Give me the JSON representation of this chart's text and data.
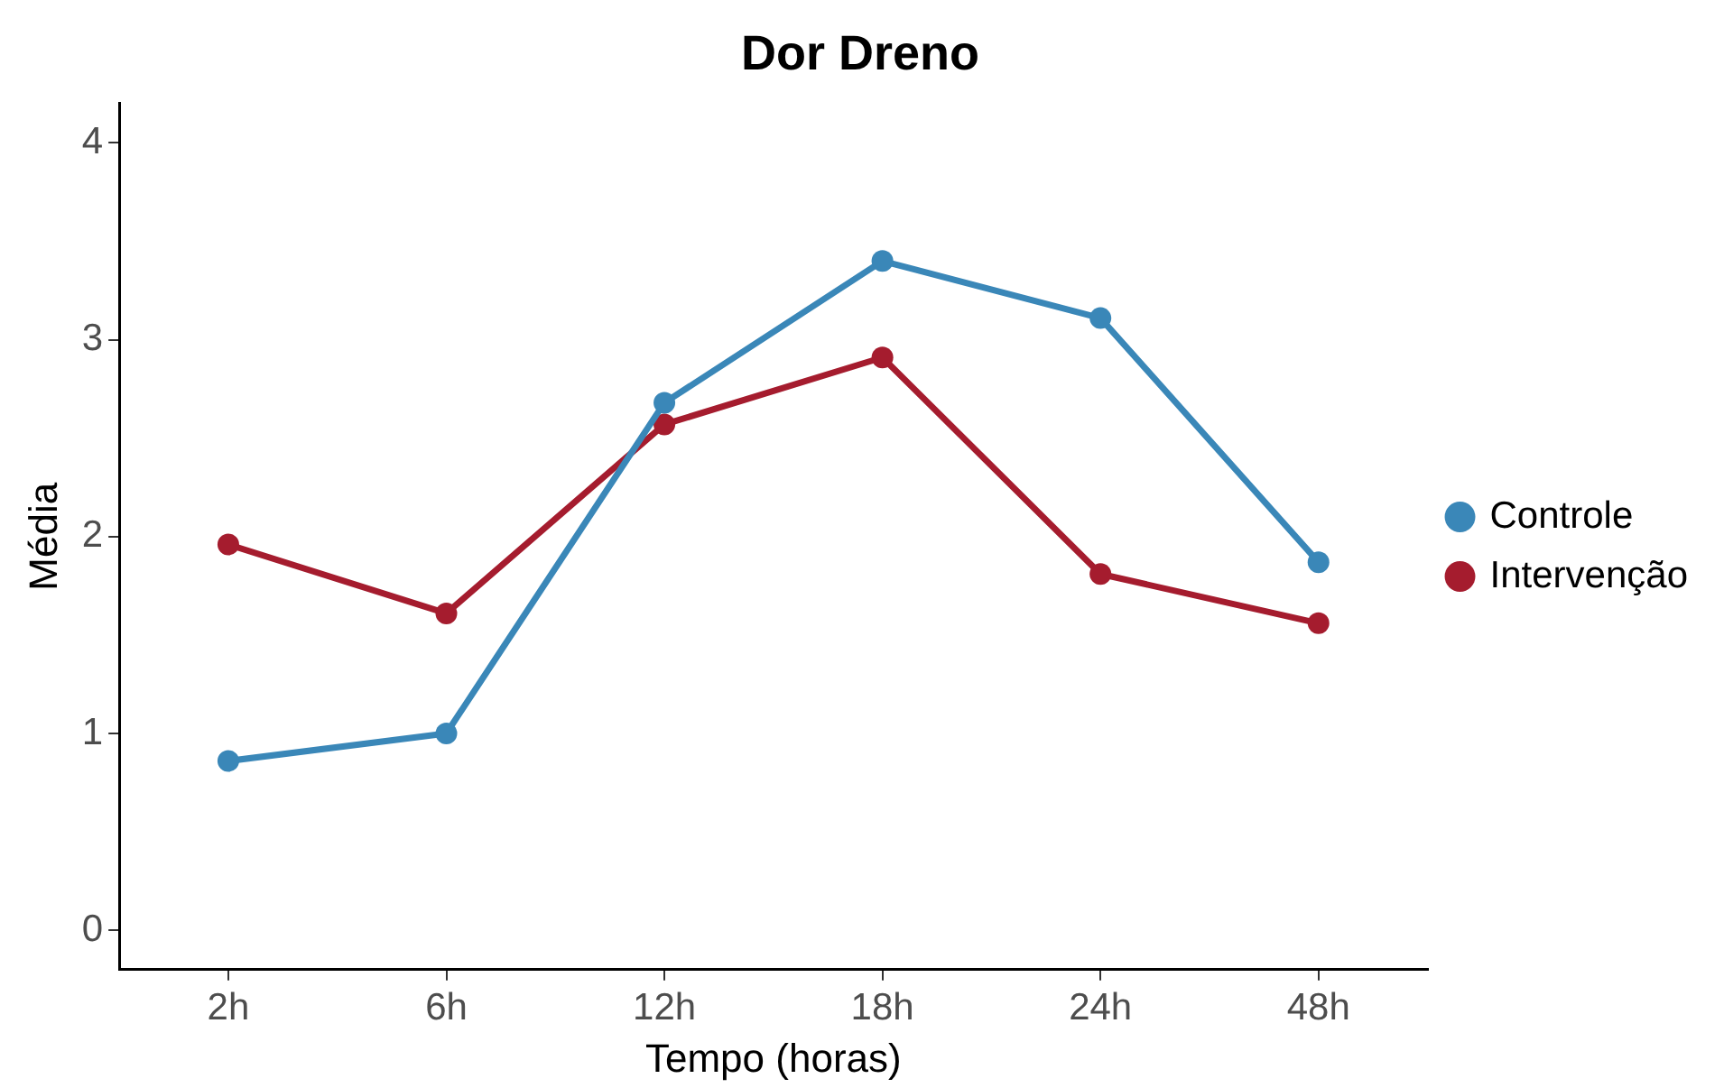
{
  "chart_data": {
    "type": "line",
    "title": "Dor Dreno",
    "xlabel": "Tempo (horas)",
    "ylabel": "Média",
    "categories": [
      "2h",
      "6h",
      "12h",
      "18h",
      "24h",
      "48h"
    ],
    "series": [
      {
        "name": "Controle",
        "color": "#3a87b8",
        "values": [
          0.86,
          1.0,
          2.68,
          3.4,
          3.11,
          1.87
        ]
      },
      {
        "name": "Intervenção",
        "color": "#a51c2e",
        "values": [
          1.96,
          1.61,
          2.57,
          2.91,
          1.81,
          1.56
        ]
      }
    ],
    "ylim": [
      -0.2,
      4.2
    ],
    "yticks": [
      0,
      1,
      2,
      3,
      4
    ],
    "grid": false,
    "legend": "right",
    "marker": "circle",
    "line_style": "solid"
  }
}
